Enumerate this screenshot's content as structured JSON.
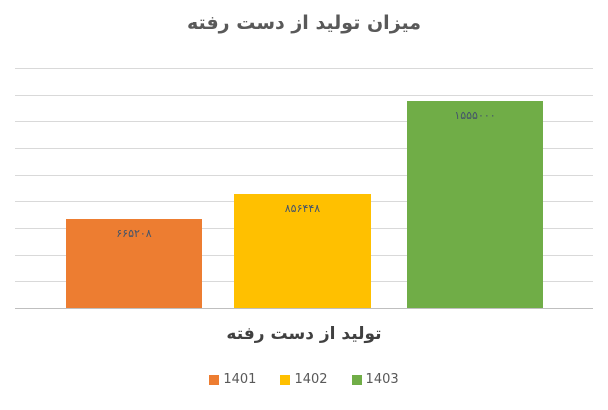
{
  "chart_data": {
    "type": "bar",
    "title": "میزان تولید از دست رفته",
    "xlabel": "تولید از دست رفته",
    "ylabel": "",
    "categories": [
      "تولید از دست رفته"
    ],
    "series": [
      {
        "name": "1401",
        "value": 665208,
        "data_label": "۶۶۵۲۰۸",
        "color": "#ED7D31"
      },
      {
        "name": "1402",
        "value": 856448,
        "data_label": "۸۵۶۴۴۸",
        "color": "#FFC000"
      },
      {
        "name": "1403",
        "value": 1555000,
        "data_label": "۱۵۵۵۰۰۰",
        "color": "#70AD47"
      }
    ],
    "ylim": [
      0,
      1800000
    ],
    "gridline_interval": 200000,
    "grid": true,
    "y_axis_labels_visible": false,
    "legend_position": "bottom",
    "data_label_position": "inside-end"
  },
  "colors": {
    "title_text": "#595959",
    "axis_title_text": "#404040",
    "legend_text": "#595959",
    "data_label_text": "#44546A",
    "gridline": "#D9D9D9",
    "background": "#FFFFFF"
  }
}
